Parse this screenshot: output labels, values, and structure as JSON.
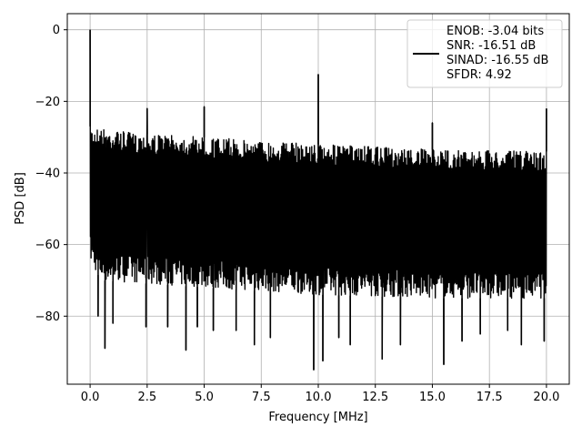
{
  "chart_data": {
    "type": "line",
    "xlabel": "Frequency [MHz]",
    "ylabel": "PSD [dB]",
    "xlim": [
      -1.0,
      21.0
    ],
    "ylim": [
      -99.0,
      4.5
    ],
    "xticks": [
      0.0,
      2.5,
      5.0,
      7.5,
      10.0,
      12.5,
      15.0,
      17.5,
      20.0
    ],
    "xtick_labels": [
      "0.0",
      "2.5",
      "5.0",
      "7.5",
      "10.0",
      "12.5",
      "15.0",
      "17.5",
      "20.0"
    ],
    "yticks": [
      0,
      -20,
      -40,
      -60,
      -80
    ],
    "ytick_labels": [
      "0",
      "−20",
      "−40",
      "−60",
      "−80"
    ],
    "grid": true,
    "legend_position": "top-right",
    "series_color": "#000000",
    "legend_lines": [
      "ENOB: -3.04 bits",
      "SNR: -16.51 dB",
      "SINAD: -16.55 dB",
      "SFDR: 4.92"
    ],
    "noise_band": {
      "x_start": 0.0,
      "x_end": 20.0,
      "upper_envelope": [
        [
          0.0,
          -27
        ],
        [
          2.0,
          -29
        ],
        [
          5.0,
          -30
        ],
        [
          10.0,
          -32
        ],
        [
          15.0,
          -33.5
        ],
        [
          20.0,
          -34
        ]
      ],
      "lower_envelope": [
        [
          0.0,
          -65
        ],
        [
          0.5,
          -70
        ],
        [
          5.0,
          -72
        ],
        [
          10.0,
          -74
        ],
        [
          15.0,
          -75
        ],
        [
          20.0,
          -75
        ]
      ]
    },
    "peaks": [
      {
        "x": 0.0,
        "y": 0.0
      },
      {
        "x": 2.5,
        "y": -22
      },
      {
        "x": 5.0,
        "y": -21.5
      },
      {
        "x": 10.0,
        "y": -12.5
      },
      {
        "x": 15.0,
        "y": -26
      },
      {
        "x": 20.0,
        "y": -22
      }
    ],
    "dips": [
      {
        "x": 0.35,
        "y": -80
      },
      {
        "x": 0.65,
        "y": -89
      },
      {
        "x": 1.0,
        "y": -82
      },
      {
        "x": 2.45,
        "y": -83
      },
      {
        "x": 3.4,
        "y": -83
      },
      {
        "x": 4.2,
        "y": -89.5
      },
      {
        "x": 4.7,
        "y": -83
      },
      {
        "x": 5.4,
        "y": -84
      },
      {
        "x": 6.4,
        "y": -84
      },
      {
        "x": 7.2,
        "y": -88
      },
      {
        "x": 7.9,
        "y": -86
      },
      {
        "x": 9.8,
        "y": -95
      },
      {
        "x": 10.2,
        "y": -92.5
      },
      {
        "x": 10.9,
        "y": -86
      },
      {
        "x": 11.4,
        "y": -88
      },
      {
        "x": 12.8,
        "y": -92
      },
      {
        "x": 13.6,
        "y": -88
      },
      {
        "x": 15.5,
        "y": -93.5
      },
      {
        "x": 16.3,
        "y": -87
      },
      {
        "x": 17.1,
        "y": -85
      },
      {
        "x": 18.3,
        "y": -84
      },
      {
        "x": 18.9,
        "y": -88
      },
      {
        "x": 19.9,
        "y": -87
      }
    ]
  }
}
